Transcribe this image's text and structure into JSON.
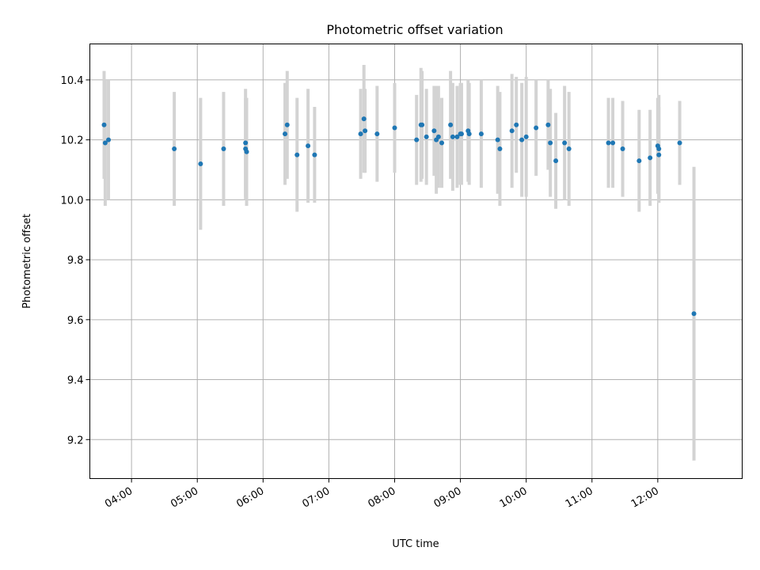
{
  "chart_data": {
    "type": "scatter",
    "title": "Photometric offset variation",
    "xlabel": "UTC time",
    "ylabel": "Photometric offset",
    "xlim": [
      "03:22",
      "13:17"
    ],
    "ylim": [
      9.07,
      10.52
    ],
    "grid": true,
    "x_ticks": [
      "04:00",
      "05:00",
      "06:00",
      "07:00",
      "08:00",
      "09:00",
      "10:00",
      "11:00",
      "12:00"
    ],
    "y_ticks": [
      "9.2",
      "9.4",
      "9.6",
      "9.8",
      "10.0",
      "10.2",
      "10.4"
    ],
    "colors": {
      "point": "#1f77b4",
      "errorbar": "#d3d3d3",
      "grid": "#b0b0b0"
    },
    "points": [
      {
        "x": "03:35",
        "y": 10.25,
        "err": 0.18
      },
      {
        "x": "03:36",
        "y": 10.19,
        "err": 0.21
      },
      {
        "x": "03:39",
        "y": 10.2,
        "err": 0.2
      },
      {
        "x": "04:39",
        "y": 10.17,
        "err": 0.19
      },
      {
        "x": "05:03",
        "y": 10.12,
        "err": 0.22
      },
      {
        "x": "05:24",
        "y": 10.17,
        "err": 0.19
      },
      {
        "x": "05:44",
        "y": 10.19,
        "err": 0.18
      },
      {
        "x": "05:44",
        "y": 10.17,
        "err": 0.17
      },
      {
        "x": "05:45",
        "y": 10.16,
        "err": 0.18
      },
      {
        "x": "06:20",
        "y": 10.22,
        "err": 0.17
      },
      {
        "x": "06:22",
        "y": 10.25,
        "err": 0.18
      },
      {
        "x": "06:31",
        "y": 10.15,
        "err": 0.19
      },
      {
        "x": "06:41",
        "y": 10.18,
        "err": 0.19
      },
      {
        "x": "06:47",
        "y": 10.15,
        "err": 0.16
      },
      {
        "x": "07:29",
        "y": 10.22,
        "err": 0.15
      },
      {
        "x": "07:32",
        "y": 10.27,
        "err": 0.18
      },
      {
        "x": "07:33",
        "y": 10.23,
        "err": 0.14
      },
      {
        "x": "07:44",
        "y": 10.22,
        "err": 0.16
      },
      {
        "x": "08:00",
        "y": 10.24,
        "err": 0.15
      },
      {
        "x": "08:20",
        "y": 10.2,
        "err": 0.15
      },
      {
        "x": "08:24",
        "y": 10.25,
        "err": 0.19
      },
      {
        "x": "08:25",
        "y": 10.25,
        "err": 0.18
      },
      {
        "x": "08:29",
        "y": 10.21,
        "err": 0.16
      },
      {
        "x": "08:36",
        "y": 10.23,
        "err": 0.15
      },
      {
        "x": "08:38",
        "y": 10.2,
        "err": 0.18
      },
      {
        "x": "08:40",
        "y": 10.21,
        "err": 0.17
      },
      {
        "x": "08:43",
        "y": 10.19,
        "err": 0.15
      },
      {
        "x": "08:51",
        "y": 10.25,
        "err": 0.18
      },
      {
        "x": "08:53",
        "y": 10.21,
        "err": 0.18
      },
      {
        "x": "08:57",
        "y": 10.21,
        "err": 0.17
      },
      {
        "x": "09:00",
        "y": 10.22,
        "err": 0.17
      },
      {
        "x": "09:01",
        "y": 10.22,
        "err": 0.17
      },
      {
        "x": "09:07",
        "y": 10.23,
        "err": 0.17
      },
      {
        "x": "09:08",
        "y": 10.22,
        "err": 0.17
      },
      {
        "x": "09:19",
        "y": 10.22,
        "err": 0.18
      },
      {
        "x": "09:34",
        "y": 10.2,
        "err": 0.18
      },
      {
        "x": "09:36",
        "y": 10.17,
        "err": 0.19
      },
      {
        "x": "09:47",
        "y": 10.23,
        "err": 0.19
      },
      {
        "x": "09:51",
        "y": 10.25,
        "err": 0.16
      },
      {
        "x": "09:56",
        "y": 10.2,
        "err": 0.19
      },
      {
        "x": "10:00",
        "y": 10.21,
        "err": 0.2
      },
      {
        "x": "10:09",
        "y": 10.24,
        "err": 0.16
      },
      {
        "x": "10:20",
        "y": 10.25,
        "err": 0.15
      },
      {
        "x": "10:22",
        "y": 10.19,
        "err": 0.18
      },
      {
        "x": "10:27",
        "y": 10.13,
        "err": 0.16
      },
      {
        "x": "10:35",
        "y": 10.19,
        "err": 0.19
      },
      {
        "x": "10:39",
        "y": 10.17,
        "err": 0.19
      },
      {
        "x": "11:15",
        "y": 10.19,
        "err": 0.15
      },
      {
        "x": "11:19",
        "y": 10.19,
        "err": 0.15
      },
      {
        "x": "11:28",
        "y": 10.17,
        "err": 0.16
      },
      {
        "x": "11:43",
        "y": 10.13,
        "err": 0.17
      },
      {
        "x": "11:53",
        "y": 10.14,
        "err": 0.16
      },
      {
        "x": "12:00",
        "y": 10.18,
        "err": 0.16
      },
      {
        "x": "12:01",
        "y": 10.17,
        "err": 0.18
      },
      {
        "x": "12:01",
        "y": 10.15,
        "err": 0.16
      },
      {
        "x": "12:20",
        "y": 10.19,
        "err": 0.14
      },
      {
        "x": "12:33",
        "y": 9.62,
        "err": 0.49
      }
    ]
  }
}
